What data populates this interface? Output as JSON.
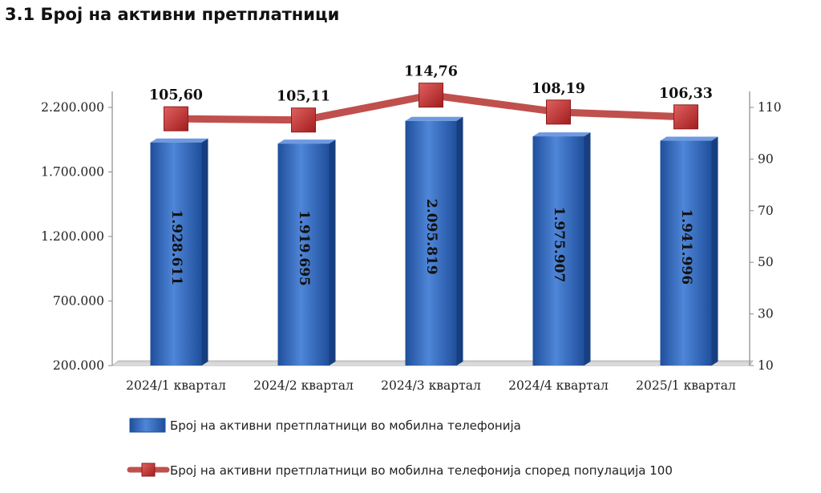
{
  "page_title": "3.1 Број на активни претплатници",
  "chart_data": {
    "type": "bar",
    "categories": [
      "2024/1 квартал",
      "2024/2 квартал",
      "2024/3 квартал",
      "2024/4 квартал",
      "2025/1 квартал"
    ],
    "series": [
      {
        "name": "Број на активни претплатници во мобилна телефонија",
        "type": "bar",
        "axis": "left",
        "values": [
          1928611,
          1919695,
          2095819,
          1975907,
          1941996
        ],
        "labels": [
          "1.928.611",
          "1.919.695",
          "2.095.819",
          "1.975.907",
          "1.941.996"
        ],
        "color": "#3a6fc4"
      },
      {
        "name": "Број на активни претплатници во мобилна телефонија според популација 100",
        "type": "line",
        "axis": "right",
        "values": [
          105.6,
          105.11,
          114.76,
          108.19,
          106.33
        ],
        "labels": [
          "105,60",
          "105,11",
          "114,76",
          "108,19",
          "106,33"
        ],
        "color": "#c0392b"
      }
    ],
    "y_left": {
      "ylim": [
        200000,
        2200000
      ],
      "ticks": [
        200000,
        700000,
        1200000,
        1700000,
        2200000
      ],
      "tick_labels": [
        "200.000",
        "700.000",
        "1.200.000",
        "1.700.000",
        "2.200.000"
      ]
    },
    "y_right": {
      "ylim": [
        10,
        110
      ],
      "ticks": [
        10,
        30,
        50,
        70,
        90,
        110
      ],
      "tick_labels": [
        "10",
        "30",
        "50",
        "70",
        "90",
        "110"
      ]
    },
    "legend": "bottom",
    "grid": false
  }
}
